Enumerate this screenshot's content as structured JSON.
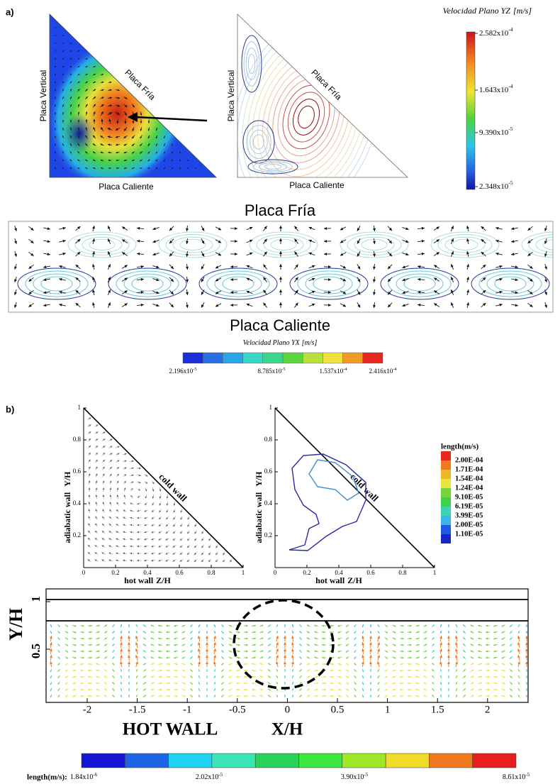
{
  "panel_a": {
    "label": "a)",
    "triangle_left": {
      "top_label": "Placa Fría",
      "left_label": "Placa Vertical",
      "bottom_label": "Placa Caliente"
    },
    "triangle_right": {
      "top_label": "Placa Fría",
      "left_label": "Placa Vertical",
      "bottom_label": "Placa Caliente"
    },
    "colorbar_yz": {
      "title": "Velocidad Plano YZ",
      "unit": "[m/s]",
      "ticks": [
        {
          "mantissa": "2.582x10",
          "exponent": "-4"
        },
        {
          "mantissa": "1.643x10",
          "exponent": "-4"
        },
        {
          "mantissa": "9.390x10",
          "exponent": "-5"
        },
        {
          "mantissa": "2.348x10",
          "exponent": "-5"
        }
      ]
    },
    "strip": {
      "top_label": "Placa Fría",
      "bottom_label": "Placa Caliente"
    },
    "colorbar_yx": {
      "title": "Velocidad Plano YX",
      "unit": "[m/s]",
      "ticks": [
        {
          "mantissa": "2.196x10",
          "exponent": "-5"
        },
        {
          "mantissa": "8.785x10",
          "exponent": "-5"
        },
        {
          "mantissa": "1.537x10",
          "exponent": "-4"
        },
        {
          "mantissa": "2.416x10",
          "exponent": "-4"
        }
      ]
    }
  },
  "panel_b": {
    "label": "b)",
    "triangle_left": {
      "diag_label": "cold wall",
      "x_label": "hot wall",
      "x_var": "Z/H",
      "y_label": "adiabatic wall",
      "y_var": "Y/H",
      "xticks": [
        "0",
        "0.2",
        "0.4",
        "0.6",
        "0.8",
        "1"
      ],
      "yticks": [
        "0.2",
        "0.4",
        "0.6",
        "0.8",
        "1"
      ]
    },
    "triangle_right": {
      "diag_label": "cold wall",
      "x_label": "hot wall",
      "x_var": "Z/H",
      "y_label": "adiabatic wall",
      "y_var": "Y/H",
      "xticks": [
        "0",
        "0.2",
        "0.4",
        "0.6",
        "0.8",
        "1"
      ],
      "yticks": [
        "0.2",
        "0.4",
        "0.6",
        "0.8",
        "1"
      ]
    },
    "legend": {
      "title": "length(m/s)",
      "entries": [
        "2.00E-04",
        "1.71E-04",
        "1.54E-04",
        "1.24E-04",
        "9.10E-05",
        "6.19E-05",
        "3.99E-05",
        "2.00E-05",
        "1.10E-05"
      ]
    },
    "strip": {
      "y_var": "Y/H",
      "yticks": [
        "0.5",
        "1"
      ],
      "xticks": [
        "-2",
        "-1.5",
        "-1",
        "-0.5",
        "0",
        "0.5",
        "1",
        "1.5",
        "2"
      ],
      "wall_label": "HOT WALL",
      "x_var": "X/H"
    },
    "colorbar": {
      "title": "length(m/s):",
      "ticks": [
        {
          "mantissa": "1.84x10",
          "exponent": "-6"
        },
        {
          "mantissa": "2.02x10",
          "exponent": "-5"
        },
        {
          "mantissa": "3.90x10",
          "exponent": "-5"
        },
        {
          "mantissa": "8.61x10",
          "exponent": "-5"
        }
      ]
    }
  }
}
